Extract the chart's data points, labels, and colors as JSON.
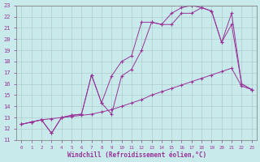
{
  "xlabel": "Windchill (Refroidissement éolien,°C)",
  "bg_color": "#c8eaea",
  "grid_color": "#b0cccc",
  "line_color": "#993399",
  "xlim": [
    -0.5,
    23.5
  ],
  "ylim": [
    11,
    23
  ],
  "xticks": [
    0,
    1,
    2,
    3,
    4,
    5,
    6,
    7,
    8,
    9,
    10,
    11,
    12,
    13,
    14,
    15,
    16,
    17,
    18,
    19,
    20,
    21,
    22,
    23
  ],
  "yticks": [
    11,
    12,
    13,
    14,
    15,
    16,
    17,
    18,
    19,
    20,
    21,
    22,
    23
  ],
  "line1_x": [
    0,
    1,
    2,
    3,
    4,
    5,
    6,
    7,
    8,
    9,
    10,
    11,
    12,
    13,
    14,
    15,
    16,
    17,
    18,
    19,
    20,
    21,
    22,
    23
  ],
  "line1_y": [
    12.4,
    12.6,
    12.8,
    12.9,
    13.0,
    13.1,
    13.2,
    13.3,
    13.5,
    13.7,
    14.0,
    14.3,
    14.6,
    15.0,
    15.3,
    15.6,
    15.9,
    16.2,
    16.5,
    16.8,
    17.1,
    17.4,
    15.8,
    15.5
  ],
  "line2_x": [
    0,
    1,
    2,
    3,
    4,
    5,
    6,
    7,
    8,
    9,
    10,
    11,
    12,
    13,
    14,
    15,
    16,
    17,
    18,
    19,
    20,
    21,
    22,
    23
  ],
  "line2_y": [
    12.4,
    12.6,
    12.8,
    11.6,
    13.0,
    13.2,
    13.3,
    16.8,
    14.3,
    13.3,
    16.7,
    17.3,
    19.0,
    21.5,
    21.3,
    21.3,
    22.3,
    22.3,
    22.8,
    22.5,
    19.7,
    21.3,
    16.0,
    15.5
  ],
  "line3_x": [
    0,
    1,
    2,
    3,
    4,
    5,
    6,
    7,
    8,
    9,
    10,
    11,
    12,
    13,
    14,
    15,
    16,
    17,
    18,
    19,
    20,
    21,
    22,
    23
  ],
  "line3_y": [
    12.4,
    12.6,
    12.8,
    11.6,
    13.0,
    13.2,
    13.3,
    16.8,
    14.3,
    16.7,
    18.0,
    18.5,
    21.5,
    21.5,
    21.3,
    22.3,
    22.8,
    23.0,
    22.8,
    22.5,
    19.7,
    22.3,
    16.0,
    15.5
  ]
}
